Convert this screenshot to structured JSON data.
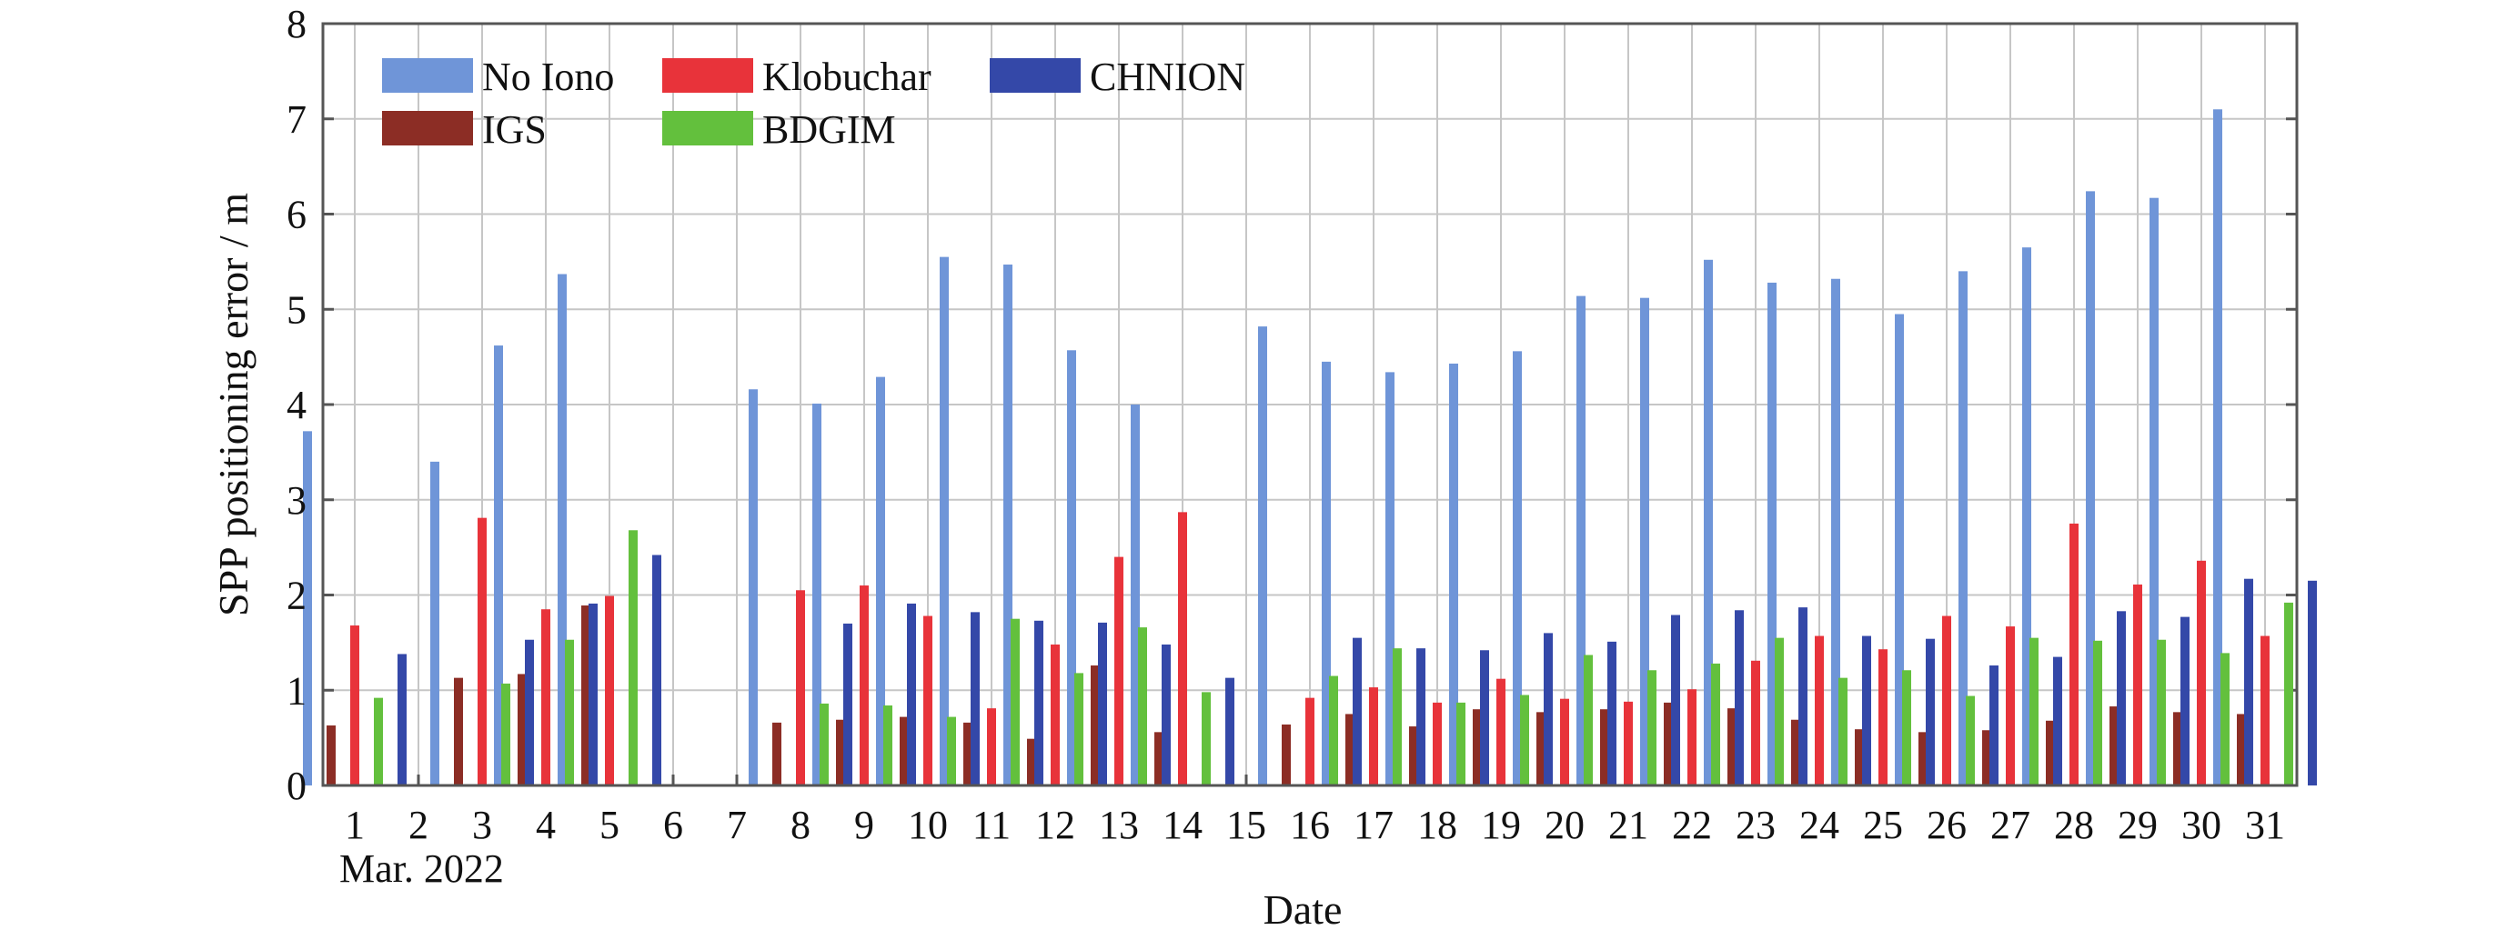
{
  "chart_data": {
    "type": "bar",
    "title": "",
    "xlabel": "Date",
    "ylabel": "SPP positioning error / m",
    "x_sublabel": "Mar. 2022",
    "ylim": [
      0,
      8
    ],
    "yticks": [
      "0",
      "1",
      "2",
      "3",
      "4",
      "5",
      "6",
      "7",
      "8"
    ],
    "grid": true,
    "legend_position": "top-left",
    "categories": [
      "1",
      "2",
      "3",
      "4",
      "5",
      "6",
      "7",
      "8",
      "9",
      "10",
      "11",
      "12",
      "13",
      "14",
      "15",
      "16",
      "17",
      "18",
      "19",
      "20",
      "21",
      "22",
      "23",
      "24",
      "25",
      "26",
      "27",
      "28",
      "29",
      "30",
      "31"
    ],
    "series": [
      {
        "name": "No Iono",
        "color": "#6f95d8",
        "values": [
          3.72,
          null,
          3.4,
          4.62,
          5.37,
          null,
          null,
          4.16,
          4.01,
          4.29,
          5.55,
          5.47,
          4.57,
          4.0,
          null,
          4.82,
          4.45,
          4.34,
          4.43,
          4.56,
          5.14,
          5.12,
          5.52,
          5.28,
          5.32,
          4.95,
          5.4,
          5.65,
          6.24,
          6.17,
          7.1
        ]
      },
      {
        "name": "IGS",
        "color": "#8c2d25",
        "values": [
          0.63,
          null,
          1.13,
          1.17,
          1.89,
          null,
          null,
          0.66,
          0.69,
          0.72,
          0.66,
          0.49,
          1.26,
          0.56,
          null,
          0.64,
          0.75,
          0.62,
          0.8,
          0.77,
          0.8,
          0.87,
          0.81,
          0.69,
          0.59,
          0.56,
          0.58,
          0.68,
          0.83,
          0.77,
          0.75
        ]
      },
      {
        "name": "Klobuchar",
        "color": "#e8333a",
        "values": [
          1.68,
          null,
          2.81,
          1.85,
          1.99,
          null,
          null,
          2.05,
          2.1,
          1.78,
          0.81,
          1.48,
          2.4,
          2.87,
          null,
          0.92,
          1.03,
          0.87,
          1.12,
          0.91,
          0.88,
          1.01,
          1.31,
          1.57,
          1.43,
          1.78,
          1.67,
          2.75,
          2.11,
          2.36,
          1.57
        ]
      },
      {
        "name": "BDGIM",
        "color": "#63c03d",
        "values": [
          0.92,
          null,
          1.07,
          1.53,
          2.68,
          null,
          null,
          0.86,
          0.84,
          0.72,
          1.75,
          1.18,
          1.66,
          0.98,
          null,
          1.15,
          1.44,
          0.87,
          0.95,
          1.37,
          1.21,
          1.28,
          1.55,
          1.13,
          1.21,
          0.94,
          1.55,
          1.52,
          1.53,
          1.39,
          1.92
        ]
      },
      {
        "name": "CHNION",
        "color": "#3448a8",
        "values": [
          1.38,
          null,
          1.53,
          1.91,
          2.42,
          null,
          null,
          1.7,
          1.91,
          1.82,
          1.73,
          1.71,
          1.48,
          1.13,
          null,
          1.55,
          1.44,
          1.42,
          1.6,
          1.51,
          1.79,
          1.84,
          1.87,
          1.57,
          1.54,
          1.26,
          1.35,
          1.83,
          1.77,
          2.17,
          2.15
        ]
      }
    ]
  }
}
